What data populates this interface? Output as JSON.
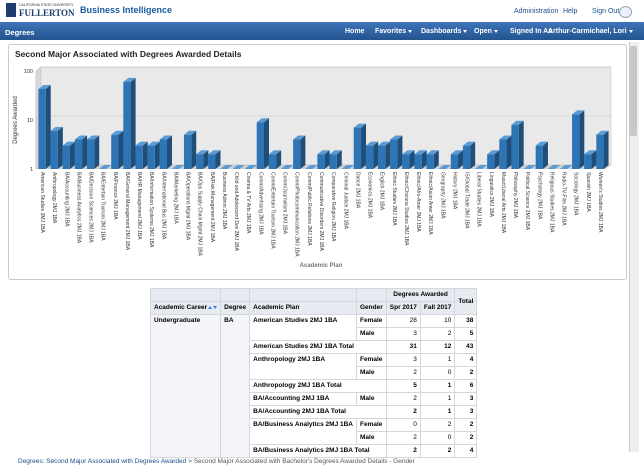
{
  "header": {
    "logo_top": "CALIFORNIA STATE UNIVERSITY",
    "logo": "FULLERTON",
    "app": "Business Intelligence",
    "links": [
      "Administration",
      "Help",
      "Sign Out"
    ]
  },
  "nav": {
    "page": "Degrees",
    "items": [
      "Home",
      "Favorites",
      "Dashboards",
      "Open"
    ],
    "signed_in_label": "Signed In As",
    "user": "Arthur-Carmichael, Lori"
  },
  "chart_data": {
    "type": "bar",
    "title": "Second Major Associated with Degrees Awarded Details",
    "y_label": "Degrees Awarded",
    "x_label": "Academic Plan",
    "categories": [
      "American Studies 2MJ 1BA",
      "Anthropology 2MJ 1BA",
      "BA/Accounting 2MJ 1BA",
      "BA/Business Analytics 2MJ 1BA",
      "BA/Decision Sciences 2MJ 1BA",
      "BA/Entertain Tourism 2MJ 1BA",
      "BA/Finance 2MJ 1BA",
      "BA/General Management 2MJ 1BA",
      "BA/HR Management 2MJ 1BA",
      "BA/Information Systems 2MJ 1BA",
      "BA/International Bus 2MJ 1BA",
      "BA/Marketing 2MJ 1BA",
      "BA/Operations Mgmt 2MJ 1BA",
      "BA/Ops Supply Chain Mgmt 2MJ 1BA",
      "BA/Risk Management 2MJ 1BA",
      "Business Admin 2MJ 1BA",
      "Child and Adolescent Dev 2MJ 1BA",
      "Cinema & TV Arts 2MJ 1BA",
      "Comm/Advertising 2MJ 1BA",
      "Comm/Entertain Tourism 2MJ 1BA",
      "Comm/Journalism 2MJ 1BA",
      "Comm/Photocommunication 2MJ 1BA",
      "Comm/Public Relations 2MJ 1BA",
      "Communicative Disorders 2MJ 1BA",
      "Comparative Religion 2MJ 1BA",
      "Criminal Justice 2MJ 1BA",
      "Dance 2MJ 1BA",
      "Economics 2MJ 1BA",
      "English 2MJ 1BA",
      "Ethnic Studies 2MJ 1BA",
      "Ethnic/Chicana Studies 2MJ 1BA",
      "Ethnic/Afro-Amer 2MJ 1BA",
      "Ethnic/Asian Amer 2MJ 1BA",
      "Geography 2MJ 1BA",
      "History 2MJ 1BA",
      "IS/Global Trade 2MJ 1BA",
      "Liberal Studies 2MJ 1BA",
      "Linguistics 2MJ 1BA",
      "Music/Liberal Arts 2MJ 1BA",
      "Philosophy 2MJ 1BA",
      "Political Science 2MJ 1BA",
      "Psychology 2MJ 1BA",
      "Religious Studies 2MJ 1BA",
      "Radio-TV-Film 2MJ 1BA",
      "Sociology 2MJ 1BA",
      "Spanish 2MJ 1BA",
      "Women's Studies 2MJ 1BA"
    ],
    "values": [
      43,
      6,
      3,
      4,
      4,
      1,
      5,
      60,
      3,
      3,
      4,
      1,
      5,
      2,
      2,
      1,
      1,
      1,
      9,
      2,
      1,
      4,
      1,
      2,
      2,
      1,
      7,
      3,
      3,
      4,
      2,
      2,
      2,
      1,
      2,
      3,
      1,
      2,
      4,
      8,
      1,
      3,
      1,
      1,
      13,
      2,
      5
    ],
    "color": "#2e75b6",
    "ylim": [
      1,
      100
    ],
    "yticks": [
      1,
      10,
      100
    ],
    "log_scale": true,
    "grid": true
  },
  "table": {
    "group_header": "Degrees Awarded",
    "total_header": "Total",
    "columns": [
      "Academic Career",
      "Degree",
      "Academic Plan",
      "Gender",
      "Spr 2017",
      "Fall 2017"
    ],
    "career": "Undergraduate",
    "degree": "BA",
    "plans": [
      {
        "name": "American Studies 2MJ 1BA",
        "rows": [
          {
            "gender": "Female",
            "values": [
              28,
              10,
              38
            ]
          },
          {
            "gender": "Male",
            "values": [
              3,
              2,
              5
            ]
          }
        ],
        "total_label": "American Studies 2MJ 1BA Total",
        "total": [
          31,
          12,
          43
        ]
      },
      {
        "name": "Anthropology 2MJ 1BA",
        "rows": [
          {
            "gender": "Female",
            "values": [
              3,
              1,
              4
            ]
          },
          {
            "gender": "Male",
            "values": [
              2,
              0,
              2
            ]
          }
        ],
        "total_label": "Anthropology 2MJ 1BA Total",
        "total": [
          5,
          1,
          6
        ]
      },
      {
        "name": "BA/Accounting 2MJ 1BA",
        "rows": [
          {
            "gender": "Male",
            "values": [
              2,
              1,
              3
            ]
          }
        ],
        "total_label": "BA/Accounting 2MJ 1BA Total",
        "total": [
          2,
          1,
          3
        ]
      },
      {
        "name": "BA/Business Analytics 2MJ 1BA",
        "rows": [
          {
            "gender": "Female",
            "values": [
              0,
              2,
              2
            ]
          },
          {
            "gender": "Male",
            "values": [
              2,
              0,
              2
            ]
          }
        ],
        "total_label": "BA/Business Analytics 2MJ 1BA Total",
        "total": [
          2,
          2,
          4
        ]
      }
    ]
  },
  "breadcrumb": {
    "items": [
      "Degrees: Second Major Associated with Degrees Awarded",
      "Second Major Associated with Bachelor's Degrees Awarded Details - Gender"
    ],
    "separator": ">"
  }
}
